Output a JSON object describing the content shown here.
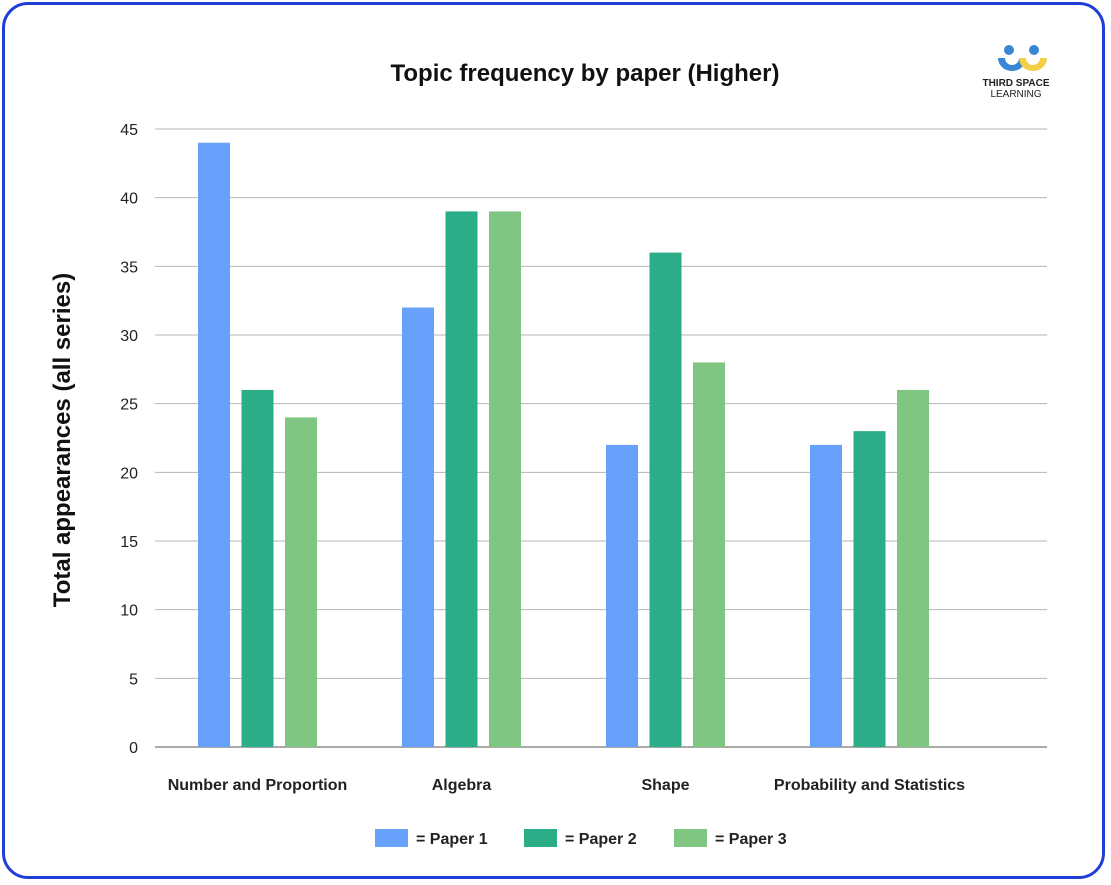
{
  "chart_data": {
    "type": "bar",
    "title": "Topic frequency by paper (Higher)",
    "xlabel": "",
    "ylabel": "Total appearances (all series)",
    "ylim": [
      0,
      45
    ],
    "yticks": [
      0,
      5,
      10,
      15,
      20,
      25,
      30,
      35,
      40,
      45
    ],
    "grid": true,
    "legend_placement": "bottom",
    "categories": [
      "Number and Proportion",
      "Algebra",
      "Shape",
      "Probability and Statistics"
    ],
    "series": [
      {
        "name": "= Paper 1",
        "color": "#67a1fb",
        "values": [
          44,
          32,
          22,
          22
        ]
      },
      {
        "name": "= Paper 2",
        "color": "#2bae87",
        "values": [
          26,
          39,
          36,
          23
        ]
      },
      {
        "name": "= Paper 3",
        "color": "#80c683",
        "values": [
          24,
          39,
          28,
          26
        ]
      }
    ]
  },
  "logo": {
    "line1": "THIRD SPACE",
    "line2": "LEARNING"
  }
}
